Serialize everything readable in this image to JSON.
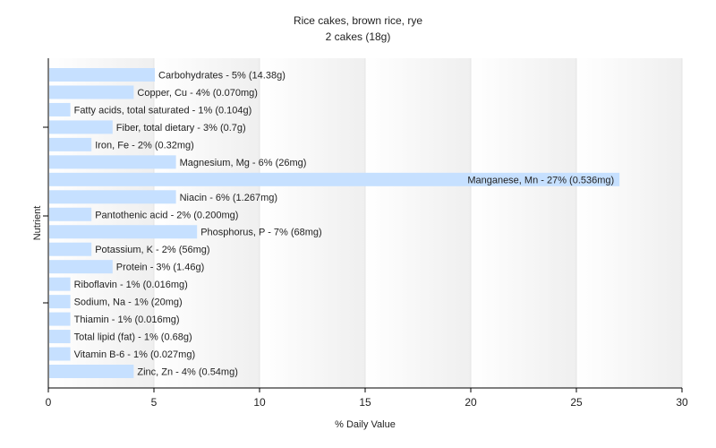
{
  "chart_data": {
    "type": "bar",
    "orientation": "horizontal",
    "title": "Rice cakes, brown rice, rye",
    "subtitle": "2 cakes (18g)",
    "xlabel": "% Daily Value",
    "ylabel": "Nutrient",
    "xlim": [
      0,
      30
    ],
    "xticks": [
      "0",
      "5",
      "10",
      "15",
      "20",
      "25",
      "30"
    ],
    "grid": "vertical gradient bands",
    "categories": [
      "Carbohydrates",
      "Copper, Cu",
      "Fatty acids, total saturated",
      "Fiber, total dietary",
      "Iron, Fe",
      "Magnesium, Mg",
      "Manganese, Mn",
      "Niacin",
      "Pantothenic acid",
      "Phosphorus, P",
      "Potassium, K",
      "Protein",
      "Riboflavin",
      "Sodium, Na",
      "Thiamin",
      "Total lipid (fat)",
      "Vitamin B-6",
      "Zinc, Zn"
    ],
    "values": [
      5,
      4,
      1,
      3,
      2,
      6,
      27,
      6,
      2,
      7,
      2,
      3,
      1,
      1,
      1,
      1,
      1,
      4
    ],
    "labels": [
      "Carbohydrates - 5% (14.38g)",
      "Copper, Cu - 4% (0.070mg)",
      "Fatty acids, total saturated - 1% (0.104g)",
      "Fiber, total dietary - 3% (0.7g)",
      "Iron, Fe - 2% (0.32mg)",
      "Magnesium, Mg - 6% (26mg)",
      "Manganese, Mn - 27% (0.536mg)",
      "Niacin - 6% (1.267mg)",
      "Pantothenic acid - 2% (0.200mg)",
      "Phosphorus, P - 7% (68mg)",
      "Potassium, K - 2% (56mg)",
      "Protein - 3% (1.46g)",
      "Riboflavin - 1% (0.016mg)",
      "Sodium, Na - 1% (20mg)",
      "Thiamin - 1% (0.016mg)",
      "Total lipid (fat) - 1% (0.68g)",
      "Vitamin B-6 - 1% (0.027mg)",
      "Zinc, Zn - 4% (0.54mg)"
    ],
    "colors": {
      "bar": "#c6e0ff",
      "axis": "#000000",
      "text": "#222222",
      "band_light": "#ffffff",
      "band_dark": "#efefef"
    }
  }
}
